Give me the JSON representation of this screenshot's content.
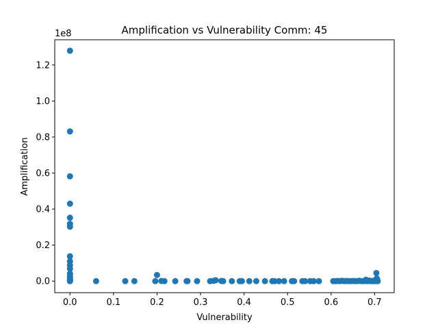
{
  "chart_data": {
    "type": "scatter",
    "title": "Amplification vs Vulnerability Comm: 45",
    "xlabel": "Vulnerability",
    "ylabel": "Amplification",
    "y_offset_label": "1e8",
    "xlim": [
      -0.035,
      0.745
    ],
    "ylim": [
      -0.064,
      1.34
    ],
    "xticks": [
      0.0,
      0.1,
      0.2,
      0.3,
      0.4,
      0.5,
      0.6,
      0.7
    ],
    "xtick_labels": [
      "0.0",
      "0.1",
      "0.2",
      "0.3",
      "0.4",
      "0.5",
      "0.6",
      "0.7"
    ],
    "yticks": [
      0.0,
      0.2,
      0.4,
      0.6,
      0.8,
      1.0,
      1.2
    ],
    "ytick_labels": [
      "0.0",
      "0.2",
      "0.4",
      "0.6",
      "0.8",
      "1.0",
      "1.2"
    ],
    "grid": false,
    "marker_color": "#1f77b4",
    "series": [
      {
        "x": [
          0.0,
          0.0,
          0.0,
          0.0,
          0.0,
          0.0,
          0.0,
          0.0,
          0.0,
          0.0,
          0.0,
          0.0,
          0.0,
          0.0,
          0.0,
          0.0,
          0.0,
          0.0,
          0.0,
          0.0,
          0.06,
          0.127,
          0.148,
          0.196,
          0.2,
          0.21,
          0.217,
          0.242,
          0.268,
          0.27,
          0.292,
          0.322,
          0.33,
          0.335,
          0.348,
          0.352,
          0.372,
          0.39,
          0.395,
          0.412,
          0.428,
          0.448,
          0.465,
          0.47,
          0.48,
          0.492,
          0.51,
          0.515,
          0.534,
          0.54,
          0.552,
          0.56,
          0.572,
          0.605,
          0.61,
          0.615,
          0.62,
          0.625,
          0.63,
          0.635,
          0.64,
          0.645,
          0.65,
          0.655,
          0.66,
          0.665,
          0.67,
          0.675,
          0.68,
          0.683,
          0.688,
          0.69,
          0.693,
          0.695,
          0.698,
          0.7,
          0.702,
          0.703,
          0.704,
          0.705,
          0.706,
          0.706,
          0.707,
          0.707
        ],
        "y": [
          1.279,
          0.831,
          0.582,
          0.43,
          0.352,
          0.318,
          0.302,
          0.138,
          0.11,
          0.088,
          0.069,
          0.042,
          0.03,
          0.02,
          0.012,
          0.008,
          0.005,
          0.003,
          0.001,
          0.0,
          0.0,
          0.0,
          0.0,
          0.0,
          0.034,
          0.001,
          0.0,
          0.0,
          0.0,
          0.0,
          0.0,
          0.0,
          0.002,
          0.005,
          0.001,
          0.0,
          0.0,
          0.0,
          0.0,
          0.0,
          0.0,
          0.0,
          0.0,
          0.0,
          0.0,
          0.0,
          0.0,
          0.0,
          0.0,
          0.0,
          0.0,
          0.0,
          0.0,
          0.0,
          0.0,
          0.001,
          0.0,
          0.002,
          0.0,
          0.001,
          0.0,
          0.0,
          0.001,
          0.0,
          0.0,
          0.002,
          0.0,
          0.0,
          0.008,
          0.0,
          0.003,
          0.0,
          0.001,
          0.0,
          0.002,
          0.0,
          0.004,
          0.0,
          0.045,
          0.015,
          0.008,
          0.003,
          0.001,
          0.0
        ]
      }
    ]
  }
}
